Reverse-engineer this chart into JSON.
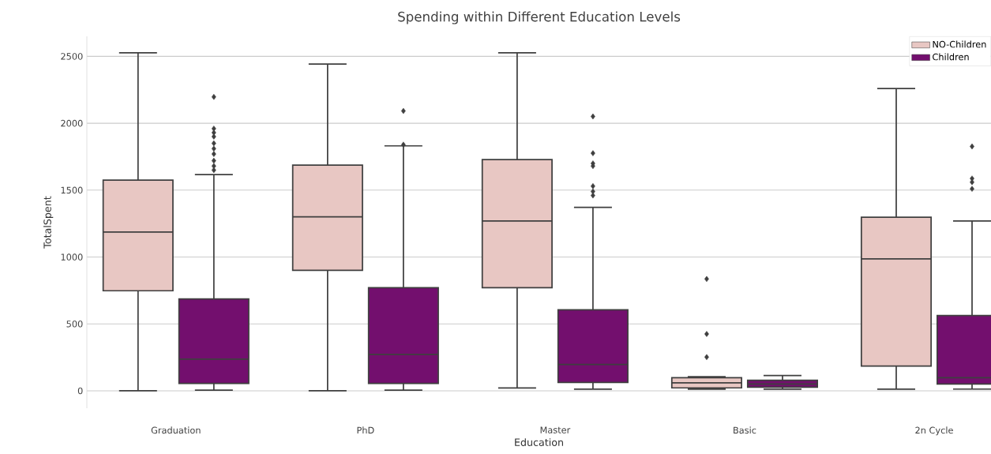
{
  "chart_data": {
    "type": "box",
    "title": "Spending within Different Education Levels",
    "xlabel": "Education",
    "ylabel": "TotalSpent",
    "categories": [
      "Graduation",
      "PhD",
      "Master",
      "Basic",
      "2n Cycle"
    ],
    "ylim": [
      -130,
      2650
    ],
    "yticks": [
      0,
      500,
      1000,
      1500,
      2000,
      2500
    ],
    "grid": "y",
    "legend": "top right",
    "marker": "diamond",
    "series": [
      {
        "name": "NO-Children",
        "color": "#e8c7c3",
        "boxes": [
          {
            "low": 0,
            "q1": 748,
            "median": 1187,
            "q3": 1575,
            "high": 2527
          },
          {
            "low": 0,
            "q1": 901,
            "median": 1301,
            "q3": 1687,
            "high": 2443
          },
          {
            "low": 21,
            "q1": 771,
            "median": 1269,
            "q3": 1728,
            "high": 2527
          },
          {
            "low": 12,
            "q1": 22,
            "median": 59,
            "q3": 98,
            "high": 106,
            "outliers": [
              836,
              425,
              252
            ]
          },
          {
            "low": 12,
            "q1": 185,
            "median": 986,
            "q3": 1297,
            "high": 2260
          }
        ]
      },
      {
        "name": "Children",
        "color": "#730f6e",
        "boxes": [
          {
            "low": 5,
            "q1": 55,
            "median": 236,
            "q3": 687,
            "high": 1616,
            "outliers": [
              2197,
              1960,
              1930,
              1900,
              1850,
              1810,
              1770,
              1720,
              1680,
              1650
            ]
          },
          {
            "low": 5,
            "q1": 55,
            "median": 272,
            "q3": 771,
            "high": 1831,
            "outliers": [
              2092,
              1840
            ]
          },
          {
            "low": 12,
            "q1": 63,
            "median": 197,
            "q3": 606,
            "high": 1372,
            "outliers": [
              2051,
              1776,
              1700,
              1680,
              1530,
              1490,
              1460
            ]
          },
          {
            "low": 12,
            "q1": 27,
            "median": 51,
            "q3": 79,
            "high": 114
          },
          {
            "low": 12,
            "q1": 51,
            "median": 98,
            "q3": 563,
            "high": 1269,
            "outliers": [
              1827,
              1587,
              1560,
              1510
            ]
          }
        ]
      }
    ]
  }
}
